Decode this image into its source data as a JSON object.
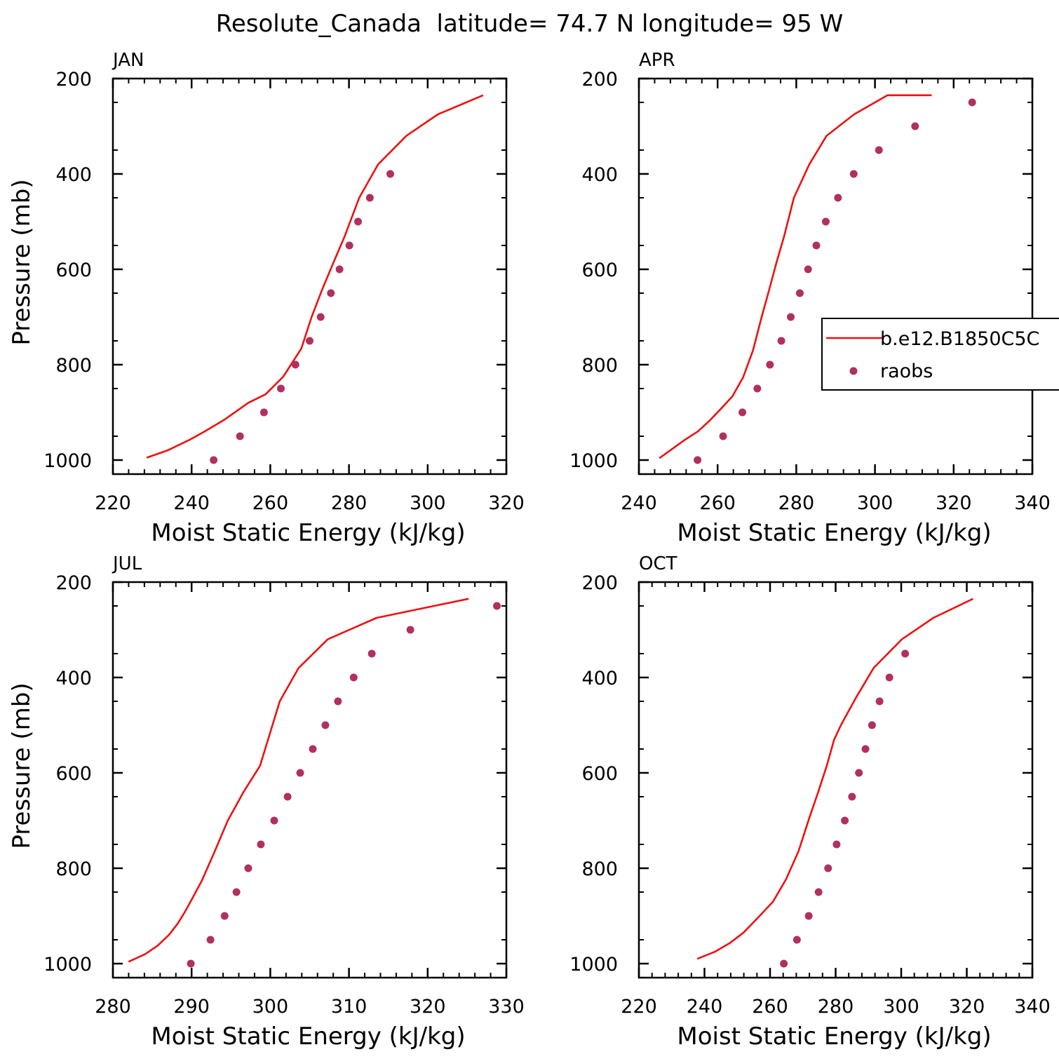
{
  "title": "Resolute_Canada  latitude= 74.7 N longitude= 95 W",
  "colors": {
    "model": "#ee1111",
    "obs": "#b03060",
    "axis": "#000000"
  },
  "legend": {
    "model_label": "b.e12.B1850C5C",
    "obs_label": "raobs",
    "placement": "right, in APR panel"
  },
  "chart_data": [
    {
      "type": "line+scatter",
      "panel_label": "JAN",
      "xlabel": "Moist Static Energy (kJ/kg)",
      "ylabel": "Pressure (mb)",
      "xlim": [
        220,
        320
      ],
      "ylim": [
        1000,
        200
      ],
      "xticks": [
        "220",
        "240",
        "260",
        "280",
        "300",
        "320"
      ],
      "yticks": [
        "200",
        "400",
        "600",
        "800",
        "1000"
      ],
      "series": [
        {
          "name": "b.e12.B1850C5C",
          "style": "line",
          "x": [
            228.6,
            233.8,
            239.6,
            243.3,
            248.4,
            254.4,
            258.8,
            263.3,
            267.9,
            270.5,
            273.3,
            276.1,
            278.9,
            282.6,
            287.4,
            294.6,
            302.6,
            314.1
          ],
          "y": [
            995,
            980,
            957,
            940,
            915,
            880,
            862,
            825,
            766,
            700,
            640,
            585,
            531,
            450,
            380,
            320,
            275,
            235
          ]
        },
        {
          "name": "raobs",
          "style": "markers",
          "x": [
            245.6,
            252.3,
            258.4,
            262.7,
            266.4,
            270.0,
            272.8,
            275.4,
            277.6,
            280.1,
            282.3,
            285.3,
            290.5
          ],
          "y": [
            1000,
            950,
            900,
            850,
            800,
            750,
            700,
            650,
            600,
            550,
            500,
            450,
            400
          ]
        }
      ]
    },
    {
      "type": "line+scatter",
      "panel_label": "APR",
      "xlabel": "Moist Static Energy (kJ/kg)",
      "ylabel": "",
      "xlim": [
        240,
        340
      ],
      "ylim": [
        1000,
        200
      ],
      "xticks": [
        "240",
        "260",
        "280",
        "300",
        "320",
        "340"
      ],
      "yticks": [
        "200",
        "400",
        "600",
        "800",
        "1000"
      ],
      "series": [
        {
          "name": "b.e12.B1850C5C",
          "style": "line",
          "x": [
            245.2,
            251.6,
            255.0,
            258.0,
            260.8,
            263.8,
            266.5,
            269.0,
            271.2,
            273.2,
            275.0,
            276.9,
            279.4,
            283.3,
            287.7,
            294.7,
            303.2,
            314.4
          ],
          "y": [
            996,
            958,
            940,
            917,
            893,
            866,
            826,
            770,
            700,
            640,
            585,
            531,
            450,
            380,
            320,
            275,
            235,
            235
          ]
        },
        {
          "name": "raobs",
          "style": "markers",
          "x": [
            254.9,
            261.4,
            266.3,
            270.1,
            273.3,
            276.2,
            278.6,
            280.9,
            283.0,
            285.1,
            287.5,
            290.6,
            294.6,
            301.0,
            310.2,
            324.7
          ],
          "y": [
            1000,
            950,
            900,
            850,
            800,
            750,
            700,
            650,
            600,
            550,
            500,
            450,
            400,
            350,
            300,
            250
          ]
        }
      ]
    },
    {
      "type": "line+scatter",
      "panel_label": "JUL",
      "xlabel": "Moist Static Energy (kJ/kg)",
      "ylabel": "Pressure (mb)",
      "xlim": [
        280,
        330
      ],
      "ylim": [
        1000,
        200
      ],
      "xticks": [
        "280",
        "290",
        "300",
        "310",
        "320",
        "330"
      ],
      "yticks": [
        "200",
        "400",
        "600",
        "800",
        "1000"
      ],
      "series": [
        {
          "name": "b.e12.B1850C5C",
          "style": "line",
          "x": [
            282.0,
            284.1,
            285.7,
            287.1,
            288.2,
            289.1,
            290.0,
            291.3,
            292.8,
            294.6,
            296.6,
            298.7,
            301.2,
            303.6,
            307.3,
            313.5,
            325.2
          ],
          "y": [
            996,
            980,
            962,
            940,
            917,
            893,
            866,
            826,
            770,
            700,
            640,
            585,
            450,
            380,
            320,
            275,
            235
          ]
        },
        {
          "name": "raobs",
          "style": "markers",
          "x": [
            289.9,
            292.4,
            294.2,
            295.7,
            297.2,
            298.8,
            300.5,
            302.2,
            303.8,
            305.4,
            307.0,
            308.6,
            310.6,
            312.9,
            317.8,
            328.8
          ],
          "y": [
            1000,
            950,
            900,
            850,
            800,
            750,
            700,
            650,
            600,
            550,
            500,
            450,
            400,
            350,
            300,
            250
          ]
        }
      ]
    },
    {
      "type": "line+scatter",
      "panel_label": "OCT",
      "xlabel": "Moist Static Energy (kJ/kg)",
      "ylabel": "",
      "xlim": [
        220,
        340
      ],
      "ylim": [
        1000,
        200
      ],
      "xticks": [
        "220",
        "240",
        "260",
        "280",
        "300",
        "320",
        "340"
      ],
      "yticks": [
        "200",
        "400",
        "600",
        "800",
        "1000"
      ],
      "series": [
        {
          "name": "b.e12.B1850C5C",
          "style": "line",
          "x": [
            237.8,
            243.2,
            247.7,
            251.9,
            256.4,
            260.9,
            264.9,
            268.7,
            271.9,
            274.7,
            277.3,
            279.5,
            281.6,
            286.0,
            291.6,
            300.2,
            309.8,
            321.9
          ],
          "y": [
            990,
            975,
            957,
            935,
            903,
            870,
            823,
            764,
            696,
            640,
            585,
            531,
            500,
            445,
            380,
            320,
            275,
            235
          ]
        },
        {
          "name": "raobs",
          "style": "markers",
          "x": [
            264.2,
            268.2,
            271.8,
            274.8,
            277.7,
            280.3,
            282.8,
            285.0,
            287.1,
            289.1,
            291.1,
            293.4,
            296.4,
            301.2
          ],
          "y": [
            1000,
            950,
            900,
            850,
            800,
            750,
            700,
            650,
            600,
            550,
            500,
            450,
            400,
            350
          ]
        }
      ]
    }
  ]
}
